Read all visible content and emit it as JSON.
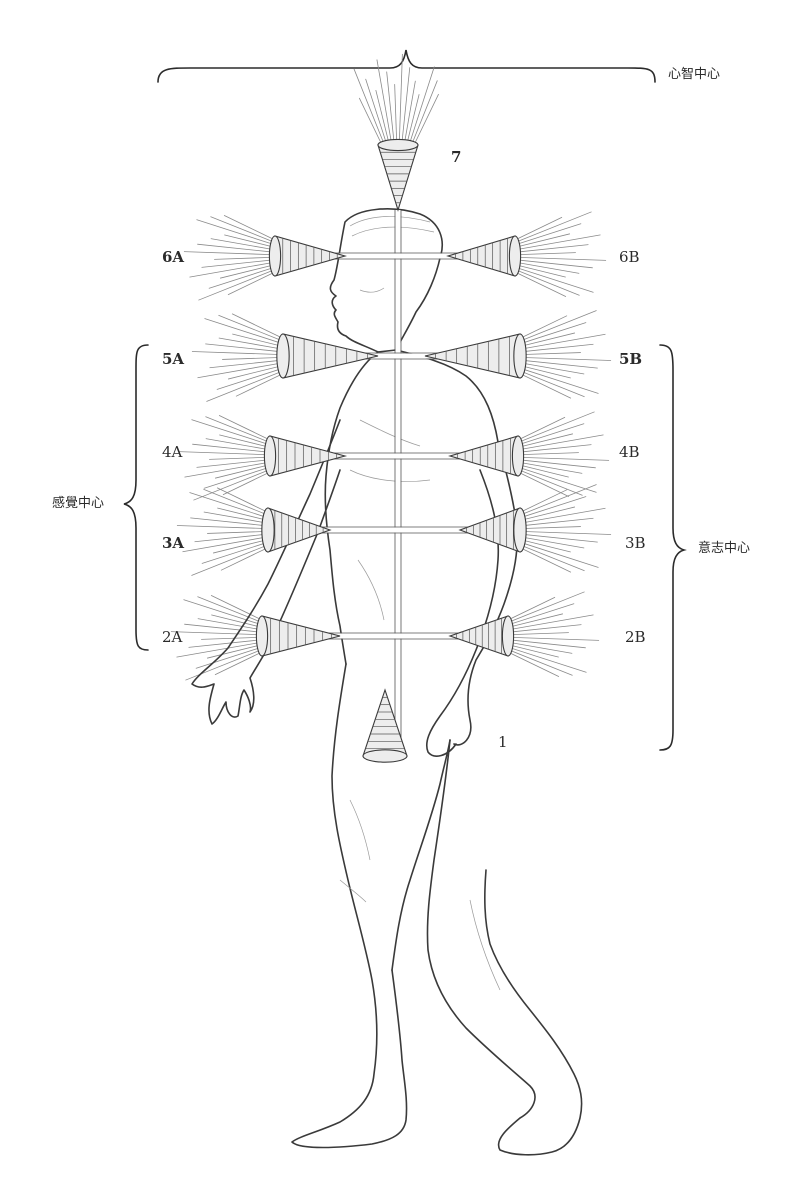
{
  "labels": {
    "mental_center": "心智中心",
    "feeling_center": "感覺中心",
    "will_center": "意志中心",
    "c7": "7",
    "c6a": "6A",
    "c6b": "6B",
    "c5a": "5A",
    "c5b": "5B",
    "c4a": "4A",
    "c4b": "4B",
    "c3a": "3A",
    "c3b": "3B",
    "c2a": "2A",
    "c2b": "2B",
    "c1": "1"
  },
  "colors": {
    "ink": "#2b2b2b",
    "background": "#ffffff"
  }
}
